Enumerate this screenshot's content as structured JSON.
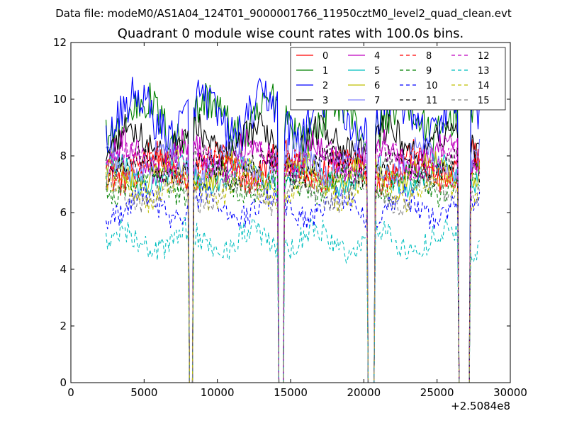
{
  "chart_data": {
    "type": "line",
    "suptitle": "Data file: modeM0/AS1A04_124T01_9000001766_11950cztM0_level2_quad_clean.evt",
    "title": "Quadrant 0 module wise count rates with 100.0s bins.",
    "xlabel": "",
    "ylabel": "",
    "x_offset_label": "+2.5084e8",
    "xlim": [
      0,
      30000
    ],
    "ylim": [
      0,
      12
    ],
    "x_ticks": [
      0,
      5000,
      10000,
      15000,
      20000,
      25000,
      30000
    ],
    "y_ticks": [
      0,
      2,
      4,
      6,
      8,
      10,
      12
    ],
    "x_tick_labels": [
      "0",
      "5000",
      "10000",
      "15000",
      "20000",
      "25000",
      "30000"
    ],
    "y_tick_labels": [
      "0",
      "2",
      "4",
      "6",
      "8",
      "10",
      "12"
    ],
    "legend_position": "top-right",
    "sampling": {
      "x_start": 2400,
      "x_step": 100,
      "x_end": 27900
    },
    "gaps": [
      {
        "from": 8050,
        "to": 8350
      },
      {
        "from": 14150,
        "to": 14550
      },
      {
        "from": 20250,
        "to": 20750
      },
      {
        "from": 26450,
        "to": 27250
      }
    ],
    "series": [
      {
        "name": "0",
        "color": "#ff0000",
        "dash": "solid",
        "mean": 7.6,
        "amplitude": 0.5
      },
      {
        "name": "1",
        "color": "#008000",
        "dash": "solid",
        "mean": 9.3,
        "amplitude": 0.7
      },
      {
        "name": "2",
        "color": "#0000ff",
        "dash": "solid",
        "mean": 9.4,
        "amplitude": 0.7
      },
      {
        "name": "3",
        "color": "#000000",
        "dash": "solid",
        "mean": 8.5,
        "amplitude": 0.5
      },
      {
        "name": "4",
        "color": "#bf00bf",
        "dash": "solid",
        "mean": 8.0,
        "amplitude": 0.5
      },
      {
        "name": "5",
        "color": "#00bfbf",
        "dash": "solid",
        "mean": 7.3,
        "amplitude": 0.4
      },
      {
        "name": "6",
        "color": "#bfbf00",
        "dash": "solid",
        "mean": 7.4,
        "amplitude": 0.4
      },
      {
        "name": "7",
        "color": "#7f7fff",
        "dash": "solid",
        "mean": 7.8,
        "amplitude": 0.5
      },
      {
        "name": "8",
        "color": "#ff0000",
        "dash": "dashed",
        "mean": 7.5,
        "amplitude": 0.4
      },
      {
        "name": "9",
        "color": "#008000",
        "dash": "dashed",
        "mean": 7.0,
        "amplitude": 0.4
      },
      {
        "name": "10",
        "color": "#0000ff",
        "dash": "dashed",
        "mean": 6.2,
        "amplitude": 0.4
      },
      {
        "name": "11",
        "color": "#000000",
        "dash": "dashed",
        "mean": 7.6,
        "amplitude": 0.4
      },
      {
        "name": "12",
        "color": "#bf00bf",
        "dash": "dashed",
        "mean": 7.8,
        "amplitude": 0.4
      },
      {
        "name": "13",
        "color": "#00bfbf",
        "dash": "dashed",
        "mean": 5.0,
        "amplitude": 0.4
      },
      {
        "name": "14",
        "color": "#bfbf00",
        "dash": "dashed",
        "mean": 6.8,
        "amplitude": 0.4
      },
      {
        "name": "15",
        "color": "#7f7f7f",
        "dash": "dashed",
        "mean": 6.7,
        "amplitude": 0.4
      }
    ]
  }
}
